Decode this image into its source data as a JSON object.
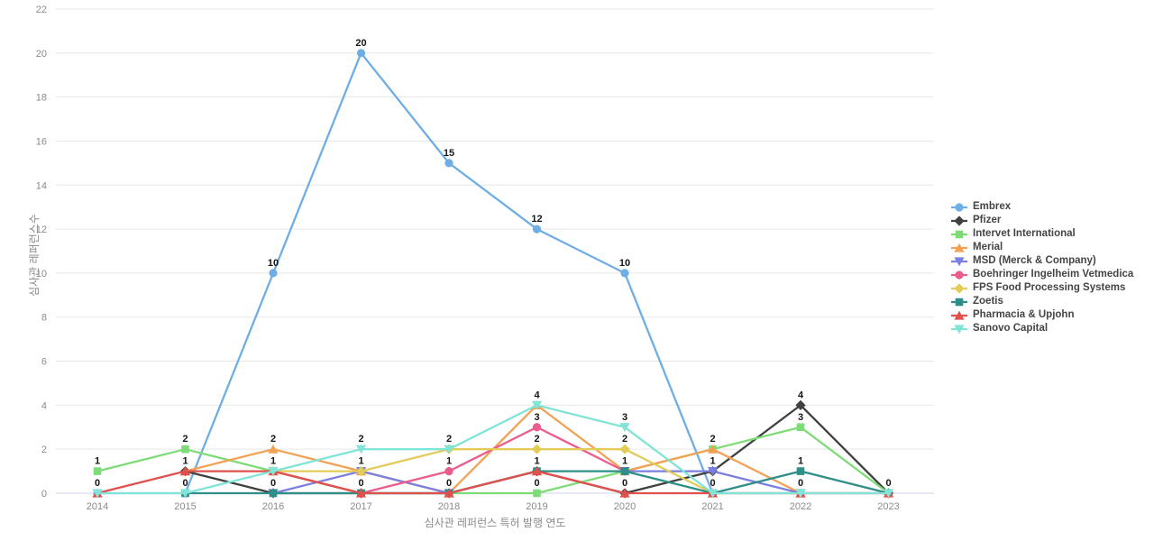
{
  "chart_data": {
    "type": "line",
    "title": "",
    "xlabel": "심사관 레퍼런스 특허 발행 연도",
    "ylabel": "심사관 레퍼런스수",
    "x_categories": [
      "2014",
      "2015",
      "2016",
      "2017",
      "2018",
      "2019",
      "2020",
      "2021",
      "2022",
      "2023"
    ],
    "y_ticks": [
      0,
      2,
      4,
      6,
      8,
      10,
      12,
      14,
      16,
      18,
      20,
      22
    ],
    "ylim": [
      0,
      22
    ],
    "grid": "horizontal",
    "legend_position": "right",
    "colors": {
      "gridline": "#e7e7e7",
      "zero_line": "#ccd6eb",
      "tick_label": "#8a8a8a",
      "axis_title": "#8a8a8a",
      "data_label": "#151515",
      "legend_text": "#454545"
    },
    "series": [
      {
        "name": "Embrex",
        "color": "#6FAEE4",
        "marker": "circle",
        "values": [
          0,
          0,
          10,
          20,
          15,
          12,
          10,
          0,
          0,
          0
        ]
      },
      {
        "name": "Pfizer",
        "color": "#404040",
        "marker": "diamond",
        "values": [
          null,
          1,
          0,
          0,
          0,
          1,
          0,
          1,
          4,
          0
        ]
      },
      {
        "name": "Intervet International",
        "color": "#7EDC77",
        "marker": "square",
        "values": [
          1,
          2,
          1,
          0,
          0,
          0,
          1,
          2,
          3,
          0
        ]
      },
      {
        "name": "Merial",
        "color": "#F2A254",
        "marker": "triangle-up",
        "values": [
          null,
          1,
          2,
          1,
          0,
          4,
          1,
          2,
          0,
          null
        ]
      },
      {
        "name": "MSD (Merck & Company)",
        "color": "#7B7FDE",
        "marker": "triangle-down",
        "values": [
          null,
          null,
          0,
          1,
          0,
          null,
          1,
          1,
          0,
          null
        ]
      },
      {
        "name": "Boehringer Ingelheim Vetmedica",
        "color": "#EB5B8C",
        "marker": "circle",
        "values": [
          null,
          null,
          1,
          0,
          1,
          3,
          1,
          null,
          null,
          null
        ]
      },
      {
        "name": "FPS Food Processing Systems",
        "color": "#E2CB57",
        "marker": "diamond",
        "values": [
          null,
          null,
          1,
          1,
          2,
          2,
          2,
          0,
          null,
          null
        ]
      },
      {
        "name": "Zoetis",
        "color": "#2E8E88",
        "marker": "square",
        "values": [
          null,
          0,
          0,
          0,
          0,
          1,
          1,
          0,
          1,
          0
        ]
      },
      {
        "name": "Pharmacia & Upjohn",
        "color": "#E0504D",
        "marker": "triangle-up",
        "values": [
          0,
          1,
          1,
          0,
          0,
          1,
          0,
          0,
          0,
          0
        ]
      },
      {
        "name": "Sanovo Capital",
        "color": "#82E3D7",
        "marker": "triangle-down",
        "values": [
          0,
          0,
          1,
          2,
          2,
          4,
          3,
          0,
          0,
          0
        ]
      }
    ]
  }
}
